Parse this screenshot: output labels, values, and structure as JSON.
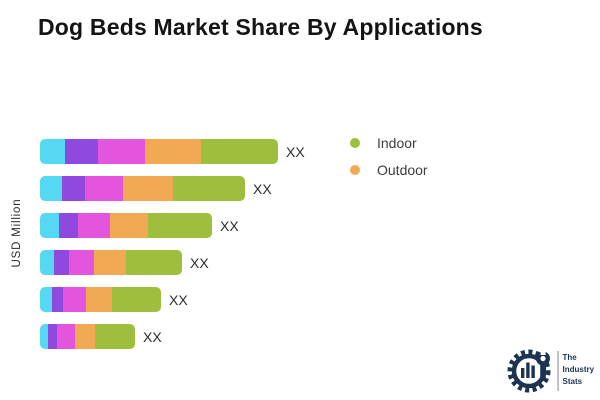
{
  "header": {
    "title": "Dog Beds Market Share By Applications"
  },
  "chart_data": {
    "type": "bar",
    "orientation": "horizontal",
    "stacked": true,
    "title": "Dog Beds Market Share By Applications",
    "xlabel": "",
    "ylabel": "USD Million",
    "grid": false,
    "legend_position": "top-right",
    "legend": [
      {
        "name": "Indoor",
        "color": "#9EBE3D"
      },
      {
        "name": "Outdoor",
        "color": "#F2A954"
      }
    ],
    "segment_colors": [
      "#55D8F2",
      "#8F49DE",
      "#E455DE",
      "#F2A954",
      "#9EBE3D"
    ],
    "bars": [
      {
        "value_label": "XX",
        "segments": [
          25,
          33,
          47,
          56,
          77
        ]
      },
      {
        "value_label": "XX",
        "segments": [
          22,
          23,
          38,
          50,
          72
        ]
      },
      {
        "value_label": "XX",
        "segments": [
          19,
          19,
          32,
          38,
          64
        ]
      },
      {
        "value_label": "XX",
        "segments": [
          14,
          15,
          25,
          32,
          56
        ]
      },
      {
        "value_label": "XX",
        "segments": [
          12,
          11,
          23,
          26,
          49
        ]
      },
      {
        "value_label": "XX",
        "segments": [
          8,
          9,
          18,
          20,
          40
        ]
      }
    ]
  },
  "logo": {
    "line1": "The",
    "line2": "Industry",
    "line3": "Stats",
    "color": "#1C3452"
  }
}
